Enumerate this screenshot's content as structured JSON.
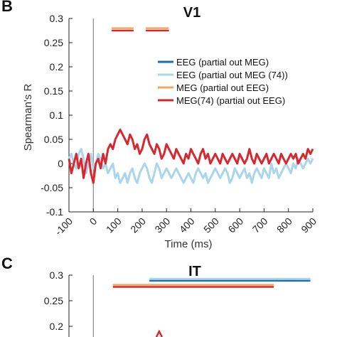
{
  "panels": {
    "b_letter": "B",
    "c_letter": "C"
  },
  "colors": {
    "eeg": "#1f6fb0",
    "eeg74": "#a9d6ea",
    "meg": "#f5a65b",
    "meg74": "#d7282f",
    "onset_line": "#888888",
    "axis": "#222222"
  },
  "chart_data": [
    {
      "panel": "B",
      "type": "line",
      "title": "V1",
      "xlabel": "Time (ms)",
      "ylabel": "Spearman's R",
      "xlim": [
        -100,
        900
      ],
      "ylim": [
        -0.1,
        0.3
      ],
      "xticks": [
        -100,
        0,
        100,
        200,
        300,
        400,
        500,
        600,
        700,
        800,
        900
      ],
      "xtick_labels": [
        "-100",
        "0",
        "100",
        "200",
        "300",
        "400",
        "500",
        "600",
        "700",
        "800",
        "900"
      ],
      "yticks": [
        -0.1,
        -0.05,
        0,
        0.05,
        0.1,
        0.15,
        0.2,
        0.25,
        0.3
      ],
      "ytick_labels": [
        "-0.1",
        "-0.05",
        "0",
        "0.05",
        "0.1",
        "0.15",
        "0.2",
        "0.25",
        "0.3"
      ],
      "onset_x": 0,
      "legend_position": "right",
      "series": [
        {
          "name": "EEG (partial out MEG)",
          "color_key": "eeg",
          "x": [
            -100,
            -90,
            -80,
            -70,
            -60,
            -50,
            -40,
            -30,
            -20,
            -10,
            0,
            10,
            20,
            30,
            40,
            50,
            60,
            70,
            80,
            90,
            100,
            110,
            120,
            130,
            140,
            150,
            160,
            170,
            180,
            190,
            200,
            210,
            220,
            230,
            240,
            250,
            260,
            270,
            280,
            290,
            300,
            310,
            320,
            330,
            340,
            350,
            360,
            370,
            380,
            390,
            400,
            410,
            420,
            430,
            440,
            450,
            460,
            470,
            480,
            490,
            500,
            510,
            520,
            530,
            540,
            550,
            560,
            570,
            580,
            590,
            600,
            610,
            620,
            630,
            640,
            650,
            660,
            670,
            680,
            690,
            700,
            710,
            720,
            730,
            740,
            750,
            760,
            770,
            780,
            790,
            800,
            810,
            820,
            830,
            840,
            850,
            860,
            870,
            880,
            890,
            900
          ],
          "y": [
            0.01,
            0.02,
            0.0,
            -0.01,
            0.02,
            0.03,
            0.01,
            -0.02,
            0.0,
            0.02,
            -0.01,
            0.0,
            0.02,
            0.01,
            -0.01,
            0.0,
            -0.02,
            -0.01,
            0.0,
            -0.03,
            -0.02,
            -0.04,
            -0.03,
            -0.02,
            -0.04,
            -0.02,
            -0.01,
            -0.03,
            -0.04,
            -0.02,
            -0.01,
            0.0,
            -0.01,
            -0.03,
            -0.04,
            -0.02,
            0.0,
            -0.01,
            -0.03,
            -0.02,
            -0.01,
            -0.02,
            -0.03,
            -0.02,
            -0.01,
            -0.02,
            -0.03,
            -0.04,
            -0.03,
            -0.02,
            -0.03,
            -0.04,
            -0.02,
            -0.01,
            -0.02,
            -0.03,
            -0.02,
            -0.04,
            -0.03,
            -0.02,
            -0.01,
            -0.02,
            -0.03,
            -0.02,
            -0.01,
            -0.02,
            -0.04,
            -0.03,
            -0.01,
            -0.02,
            -0.03,
            -0.02,
            -0.01,
            -0.03,
            -0.02,
            -0.04,
            -0.02,
            -0.01,
            -0.02,
            -0.03,
            -0.01,
            -0.02,
            -0.03,
            0.0,
            -0.02,
            -0.01,
            -0.03,
            -0.02,
            -0.01,
            0.0,
            -0.01,
            -0.02,
            0.0,
            -0.01,
            0.01,
            0.0,
            -0.01,
            0.0,
            0.01,
            0.0,
            0.01
          ]
        },
        {
          "name": "EEG (partial out MEG (74))",
          "color_key": "eeg74",
          "x": [
            -100,
            -90,
            -80,
            -70,
            -60,
            -50,
            -40,
            -30,
            -20,
            -10,
            0,
            10,
            20,
            30,
            40,
            50,
            60,
            70,
            80,
            90,
            100,
            110,
            120,
            130,
            140,
            150,
            160,
            170,
            180,
            190,
            200,
            210,
            220,
            230,
            240,
            250,
            260,
            270,
            280,
            290,
            300,
            310,
            320,
            330,
            340,
            350,
            360,
            370,
            380,
            390,
            400,
            410,
            420,
            430,
            440,
            450,
            460,
            470,
            480,
            490,
            500,
            510,
            520,
            530,
            540,
            550,
            560,
            570,
            580,
            590,
            600,
            610,
            620,
            630,
            640,
            650,
            660,
            670,
            680,
            690,
            700,
            710,
            720,
            730,
            740,
            750,
            760,
            770,
            780,
            790,
            800,
            810,
            820,
            830,
            840,
            850,
            860,
            870,
            880,
            890,
            900
          ],
          "y": [
            0.01,
            0.02,
            0.0,
            -0.01,
            0.02,
            0.03,
            0.01,
            -0.02,
            0.0,
            0.02,
            -0.01,
            0.0,
            0.02,
            0.01,
            -0.01,
            0.0,
            -0.02,
            -0.01,
            0.0,
            -0.03,
            -0.02,
            -0.04,
            -0.03,
            -0.02,
            -0.04,
            -0.02,
            -0.01,
            -0.03,
            -0.04,
            -0.02,
            -0.01,
            0.0,
            -0.01,
            -0.03,
            -0.04,
            -0.02,
            0.0,
            -0.01,
            -0.03,
            -0.02,
            -0.01,
            -0.02,
            -0.03,
            -0.02,
            -0.01,
            -0.02,
            -0.03,
            -0.04,
            -0.03,
            -0.02,
            -0.03,
            -0.04,
            -0.02,
            -0.01,
            -0.02,
            -0.03,
            -0.02,
            -0.04,
            -0.03,
            -0.02,
            -0.01,
            -0.02,
            -0.03,
            -0.02,
            -0.01,
            -0.02,
            -0.04,
            -0.03,
            -0.01,
            -0.02,
            -0.03,
            -0.02,
            -0.01,
            -0.03,
            -0.02,
            -0.04,
            -0.02,
            -0.01,
            -0.02,
            -0.03,
            -0.01,
            -0.02,
            -0.03,
            0.0,
            -0.02,
            -0.01,
            -0.03,
            -0.02,
            -0.01,
            0.0,
            -0.01,
            -0.02,
            0.0,
            -0.01,
            0.01,
            0.0,
            -0.01,
            0.0,
            0.01,
            0.0,
            0.01
          ]
        },
        {
          "name": "MEG (partial out EEG)",
          "color_key": "meg",
          "x": [
            -100,
            -90,
            -80,
            -70,
            -60,
            -50,
            -40,
            -30,
            -20,
            -10,
            0,
            10,
            20,
            30,
            40,
            50,
            60,
            70,
            80,
            90,
            100,
            110,
            120,
            130,
            140,
            150,
            160,
            170,
            180,
            190,
            200,
            210,
            220,
            230,
            240,
            250,
            260,
            270,
            280,
            290,
            300,
            310,
            320,
            330,
            340,
            350,
            360,
            370,
            380,
            390,
            400,
            410,
            420,
            430,
            440,
            450,
            460,
            470,
            480,
            490,
            500,
            510,
            520,
            530,
            540,
            550,
            560,
            570,
            580,
            590,
            600,
            610,
            620,
            630,
            640,
            650,
            660,
            670,
            680,
            690,
            700,
            710,
            720,
            730,
            740,
            750,
            760,
            770,
            780,
            790,
            800,
            810,
            820,
            830,
            840,
            850,
            860,
            870,
            880,
            890,
            900
          ],
          "y": [
            0.01,
            -0.02,
            0.0,
            0.02,
            -0.01,
            0.01,
            -0.03,
            0.0,
            0.02,
            -0.02,
            -0.04,
            0.0,
            0.01,
            -0.01,
            0.02,
            0.0,
            0.03,
            0.04,
            0.03,
            0.05,
            0.06,
            0.07,
            0.06,
            0.05,
            0.04,
            0.06,
            0.05,
            0.03,
            0.04,
            0.02,
            0.03,
            0.05,
            0.06,
            0.04,
            0.03,
            0.02,
            0.04,
            0.03,
            0.01,
            0.02,
            0.04,
            0.03,
            0.02,
            0.01,
            0.03,
            0.02,
            0.01,
            0.0,
            0.02,
            0.01,
            0.03,
            0.02,
            0.01,
            0.0,
            0.02,
            0.03,
            0.01,
            0.02,
            0.0,
            0.01,
            0.02,
            0.01,
            0.0,
            0.02,
            0.01,
            0.0,
            0.01,
            0.02,
            0.01,
            0.0,
            0.02,
            0.01,
            0.0,
            0.01,
            0.03,
            0.01,
            0.0,
            0.02,
            0.01,
            0.0,
            0.01,
            0.02,
            0.0,
            0.01,
            0.02,
            0.01,
            0.0,
            0.02,
            0.01,
            0.0,
            0.01,
            0.02,
            0.01,
            0.02,
            0.0,
            0.01,
            0.02,
            0.01,
            0.03,
            0.02,
            0.03
          ]
        },
        {
          "name": "MEG(74) (partial out EEG)",
          "color_key": "meg74",
          "x": [
            -100,
            -90,
            -80,
            -70,
            -60,
            -50,
            -40,
            -30,
            -20,
            -10,
            0,
            10,
            20,
            30,
            40,
            50,
            60,
            70,
            80,
            90,
            100,
            110,
            120,
            130,
            140,
            150,
            160,
            170,
            180,
            190,
            200,
            210,
            220,
            230,
            240,
            250,
            260,
            270,
            280,
            290,
            300,
            310,
            320,
            330,
            340,
            350,
            360,
            370,
            380,
            390,
            400,
            410,
            420,
            430,
            440,
            450,
            460,
            470,
            480,
            490,
            500,
            510,
            520,
            530,
            540,
            550,
            560,
            570,
            580,
            590,
            600,
            610,
            620,
            630,
            640,
            650,
            660,
            670,
            680,
            690,
            700,
            710,
            720,
            730,
            740,
            750,
            760,
            770,
            780,
            790,
            800,
            810,
            820,
            830,
            840,
            850,
            860,
            870,
            880,
            890,
            900
          ],
          "y": [
            0.01,
            -0.02,
            0.0,
            0.02,
            -0.01,
            0.01,
            -0.03,
            0.0,
            0.02,
            -0.02,
            -0.04,
            0.0,
            0.01,
            -0.01,
            0.02,
            0.0,
            0.03,
            0.04,
            0.03,
            0.05,
            0.06,
            0.07,
            0.06,
            0.05,
            0.04,
            0.06,
            0.05,
            0.03,
            0.04,
            0.02,
            0.03,
            0.05,
            0.06,
            0.04,
            0.03,
            0.02,
            0.04,
            0.03,
            0.01,
            0.02,
            0.04,
            0.03,
            0.02,
            0.01,
            0.03,
            0.02,
            0.01,
            0.0,
            0.02,
            0.01,
            0.03,
            0.02,
            0.01,
            0.0,
            0.02,
            0.03,
            0.01,
            0.02,
            0.0,
            0.01,
            0.02,
            0.01,
            0.0,
            0.02,
            0.01,
            0.0,
            0.01,
            0.02,
            0.01,
            0.0,
            0.02,
            0.01,
            0.0,
            0.01,
            0.03,
            0.01,
            0.0,
            0.02,
            0.01,
            0.0,
            0.01,
            0.02,
            0.0,
            0.01,
            0.02,
            0.01,
            0.0,
            0.02,
            0.01,
            0.0,
            0.01,
            0.02,
            0.01,
            0.02,
            0.0,
            0.01,
            0.02,
            0.01,
            0.03,
            0.02,
            0.03
          ]
        }
      ],
      "significance_bars": [
        {
          "color_key": "meg",
          "x_start": 75,
          "x_end": 165,
          "y": 0.28
        },
        {
          "color_key": "meg74",
          "x_start": 75,
          "x_end": 165,
          "y": 0.275
        },
        {
          "color_key": "meg",
          "x_start": 215,
          "x_end": 310,
          "y": 0.28
        },
        {
          "color_key": "meg74",
          "x_start": 215,
          "x_end": 310,
          "y": 0.275
        }
      ]
    },
    {
      "panel": "C",
      "type": "line",
      "title": "IT",
      "xlabel": "",
      "ylabel": "",
      "ylim": [
        0.2,
        0.3
      ],
      "yticks": [
        0.2,
        0.25,
        0.3
      ],
      "ytick_labels": [
        "0.2",
        "0.25",
        "0.3"
      ],
      "onset_x": 0,
      "significance_bars": [
        {
          "color_key": "eeg74",
          "x_start": 230,
          "x_end": 890,
          "y": 0.293
        },
        {
          "color_key": "eeg",
          "x_start": 230,
          "x_end": 890,
          "y": 0.289
        },
        {
          "color_key": "meg",
          "x_start": 80,
          "x_end": 740,
          "y": 0.281
        },
        {
          "color_key": "meg74",
          "x_start": 80,
          "x_end": 740,
          "y": 0.277
        }
      ],
      "visible_peak": {
        "x": 270,
        "y": 0.19
      }
    }
  ]
}
